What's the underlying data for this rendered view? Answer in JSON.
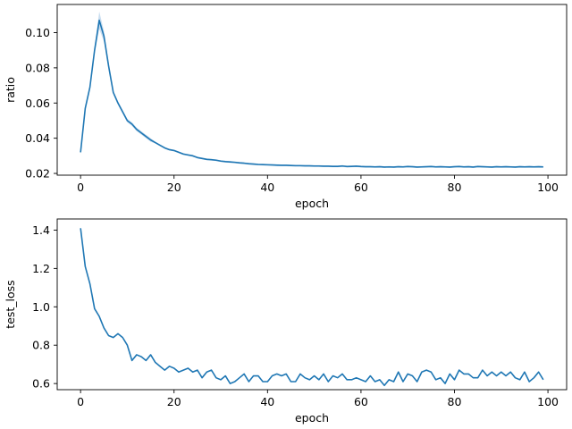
{
  "chart_data": [
    {
      "type": "line",
      "title": "",
      "xlabel": "epoch",
      "ylabel": "ratio",
      "xlim": [
        -5,
        104
      ],
      "ylim": [
        0.019,
        0.116
      ],
      "xticks": [
        0,
        20,
        40,
        60,
        80,
        100
      ],
      "yticks": [
        0.02,
        0.04,
        0.06,
        0.08,
        0.1
      ],
      "ytick_labels": [
        "0.02",
        "0.04",
        "0.06",
        "0.08",
        "0.10"
      ],
      "grid": false,
      "line_color": "#1f77b4",
      "band_color": "#a6c8e6",
      "series": [
        {
          "x": [
            0,
            1,
            2,
            3,
            4,
            5,
            6,
            7,
            8,
            9,
            10,
            11,
            12,
            13,
            14,
            15,
            16,
            17,
            18,
            19,
            20,
            21,
            22,
            23,
            24,
            25,
            26,
            27,
            28,
            29,
            30,
            31,
            32,
            33,
            34,
            35,
            36,
            37,
            38,
            39,
            40,
            41,
            42,
            43,
            44,
            45,
            46,
            47,
            48,
            49,
            50,
            51,
            52,
            53,
            54,
            55,
            56,
            57,
            58,
            59,
            60,
            61,
            62,
            63,
            64,
            65,
            66,
            67,
            68,
            69,
            70,
            71,
            72,
            73,
            74,
            75,
            76,
            77,
            78,
            79,
            80,
            81,
            82,
            83,
            84,
            85,
            86,
            87,
            88,
            89,
            90,
            91,
            92,
            93,
            94,
            95,
            96,
            97,
            98,
            99
          ],
          "values": [
            0.032,
            0.057,
            0.069,
            0.09,
            0.107,
            0.098,
            0.081,
            0.066,
            0.06,
            0.055,
            0.05,
            0.048,
            0.045,
            0.043,
            0.041,
            0.039,
            0.0375,
            0.036,
            0.0345,
            0.0335,
            0.033,
            0.032,
            0.031,
            0.0305,
            0.03,
            0.029,
            0.0285,
            0.028,
            0.0278,
            0.0275,
            0.027,
            0.0267,
            0.0265,
            0.0263,
            0.026,
            0.0258,
            0.0255,
            0.0253,
            0.0251,
            0.025,
            0.0249,
            0.0248,
            0.0247,
            0.0246,
            0.0246,
            0.0245,
            0.0244,
            0.0244,
            0.0243,
            0.0243,
            0.0242,
            0.0242,
            0.0241,
            0.0241,
            0.024,
            0.024,
            0.0242,
            0.0239,
            0.024,
            0.0241,
            0.0239,
            0.0238,
            0.0238,
            0.0237,
            0.0238,
            0.0236,
            0.0237,
            0.0236,
            0.0238,
            0.0237,
            0.0239,
            0.0238,
            0.0236,
            0.0237,
            0.0238,
            0.0239,
            0.0237,
            0.0238,
            0.0237,
            0.0236,
            0.0238,
            0.0239,
            0.0237,
            0.0238,
            0.0236,
            0.0239,
            0.0238,
            0.0237,
            0.0236,
            0.0238,
            0.0237,
            0.0238,
            0.0237,
            0.0236,
            0.0238,
            0.0237,
            0.0238,
            0.0237,
            0.0238,
            0.0237
          ],
          "band_upper": [
            0.033,
            0.058,
            0.07,
            0.092,
            0.112,
            0.101,
            0.083,
            0.067,
            0.061,
            0.056,
            0.051,
            0.049,
            0.046,
            0.044,
            0.042,
            0.04,
            0.038,
            0.0365,
            0.035,
            0.034,
            0.0335,
            0.0325,
            0.0315,
            0.031,
            0.0305,
            0.0295,
            0.029,
            0.0285,
            0.0283,
            0.028,
            0.0275,
            0.0272,
            0.027,
            0.0268,
            0.0265,
            0.0263,
            0.026,
            0.0258,
            0.0256,
            0.0255,
            0.0254,
            0.0253,
            0.0252,
            0.0251,
            0.0251,
            0.025,
            0.0249,
            0.0249,
            0.0248,
            0.0248,
            0.0247,
            0.0247,
            0.0246,
            0.0246,
            0.0245,
            0.0245,
            0.0247,
            0.0244,
            0.0245,
            0.0246,
            0.0244,
            0.0243,
            0.0243,
            0.0242,
            0.0243,
            0.0241,
            0.0242,
            0.0241,
            0.0243,
            0.0242,
            0.0244,
            0.0243,
            0.0241,
            0.0242,
            0.0243,
            0.0244,
            0.0242,
            0.0243,
            0.0242,
            0.0241,
            0.0243,
            0.0244,
            0.0242,
            0.0243,
            0.0241,
            0.0244,
            0.0243,
            0.0242,
            0.0241,
            0.0243,
            0.0242,
            0.0243,
            0.0242,
            0.0241,
            0.0243,
            0.0242,
            0.0243,
            0.0242,
            0.0243,
            0.0242
          ],
          "band_lower": [
            0.031,
            0.056,
            0.068,
            0.088,
            0.102,
            0.095,
            0.079,
            0.065,
            0.059,
            0.054,
            0.049,
            0.047,
            0.044,
            0.042,
            0.04,
            0.038,
            0.037,
            0.0355,
            0.034,
            0.033,
            0.0325,
            0.0315,
            0.0305,
            0.03,
            0.0295,
            0.0285,
            0.028,
            0.0275,
            0.0273,
            0.027,
            0.0265,
            0.0262,
            0.026,
            0.0258,
            0.0255,
            0.0253,
            0.025,
            0.0248,
            0.0246,
            0.0245,
            0.0244,
            0.0243,
            0.0242,
            0.0241,
            0.0241,
            0.024,
            0.0239,
            0.0239,
            0.0238,
            0.0238,
            0.0237,
            0.0237,
            0.0236,
            0.0236,
            0.0235,
            0.0235,
            0.0237,
            0.0234,
            0.0235,
            0.0236,
            0.0234,
            0.0233,
            0.0233,
            0.0232,
            0.0233,
            0.0231,
            0.0232,
            0.0231,
            0.0233,
            0.0232,
            0.0234,
            0.0233,
            0.0231,
            0.0232,
            0.0233,
            0.0234,
            0.0232,
            0.0233,
            0.0232,
            0.0231,
            0.0233,
            0.0234,
            0.0232,
            0.0233,
            0.0231,
            0.0234,
            0.0233,
            0.0232,
            0.0231,
            0.0233,
            0.0232,
            0.0233,
            0.0232,
            0.0231,
            0.0233,
            0.0232,
            0.0233,
            0.0232,
            0.0233,
            0.0232
          ]
        }
      ]
    },
    {
      "type": "line",
      "title": "",
      "xlabel": "epoch",
      "ylabel": "test_loss",
      "xlim": [
        -5,
        104
      ],
      "ylim": [
        0.568,
        1.458
      ],
      "xticks": [
        0,
        20,
        40,
        60,
        80,
        100
      ],
      "yticks": [
        0.6,
        0.8,
        1.0,
        1.2,
        1.4
      ],
      "ytick_labels": [
        "0.6",
        "0.8",
        "1.0",
        "1.2",
        "1.4"
      ],
      "grid": false,
      "line_color": "#1f77b4",
      "series": [
        {
          "x": [
            0,
            1,
            2,
            3,
            4,
            5,
            6,
            7,
            8,
            9,
            10,
            11,
            12,
            13,
            14,
            15,
            16,
            17,
            18,
            19,
            20,
            21,
            22,
            23,
            24,
            25,
            26,
            27,
            28,
            29,
            30,
            31,
            32,
            33,
            34,
            35,
            36,
            37,
            38,
            39,
            40,
            41,
            42,
            43,
            44,
            45,
            46,
            47,
            48,
            49,
            50,
            51,
            52,
            53,
            54,
            55,
            56,
            57,
            58,
            59,
            60,
            61,
            62,
            63,
            64,
            65,
            66,
            67,
            68,
            69,
            70,
            71,
            72,
            73,
            74,
            75,
            76,
            77,
            78,
            79,
            80,
            81,
            82,
            83,
            84,
            85,
            86,
            87,
            88,
            89,
            90,
            91,
            92,
            93,
            94,
            95,
            96,
            97,
            98,
            99
          ],
          "values": [
            1.41,
            1.21,
            1.12,
            0.99,
            0.95,
            0.89,
            0.85,
            0.84,
            0.86,
            0.84,
            0.8,
            0.72,
            0.75,
            0.74,
            0.72,
            0.75,
            0.71,
            0.69,
            0.67,
            0.69,
            0.68,
            0.66,
            0.67,
            0.68,
            0.66,
            0.67,
            0.63,
            0.66,
            0.67,
            0.63,
            0.62,
            0.64,
            0.6,
            0.61,
            0.63,
            0.65,
            0.61,
            0.64,
            0.64,
            0.61,
            0.61,
            0.64,
            0.65,
            0.64,
            0.65,
            0.61,
            0.61,
            0.65,
            0.63,
            0.62,
            0.64,
            0.62,
            0.65,
            0.61,
            0.64,
            0.63,
            0.65,
            0.62,
            0.62,
            0.63,
            0.62,
            0.61,
            0.64,
            0.61,
            0.62,
            0.59,
            0.62,
            0.61,
            0.66,
            0.61,
            0.65,
            0.64,
            0.61,
            0.66,
            0.67,
            0.66,
            0.62,
            0.63,
            0.6,
            0.65,
            0.62,
            0.67,
            0.65,
            0.65,
            0.63,
            0.63,
            0.67,
            0.64,
            0.66,
            0.64,
            0.66,
            0.64,
            0.66,
            0.63,
            0.62,
            0.66,
            0.61,
            0.63,
            0.66,
            0.62
          ]
        }
      ]
    }
  ]
}
